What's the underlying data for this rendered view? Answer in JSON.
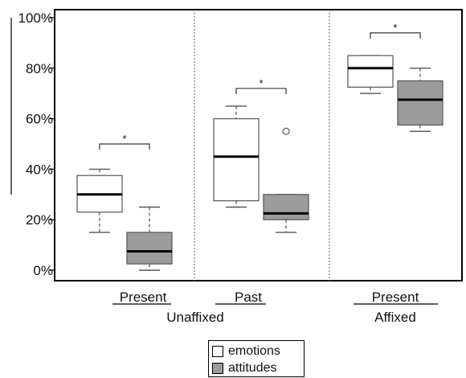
{
  "chart_data": {
    "type": "boxplot",
    "title": "",
    "xlabel": "",
    "ylabel": "",
    "ylim": [
      0,
      100
    ],
    "y_ticks": [
      "0%",
      "20%",
      "40%",
      "60%",
      "80%",
      "100%"
    ],
    "y_tick_values": [
      0,
      20,
      40,
      60,
      80,
      100
    ],
    "groups": [
      {
        "label": "Present",
        "supergroup": "Unaffixed"
      },
      {
        "label": "Past",
        "supergroup": ""
      },
      {
        "label": "Present",
        "supergroup": "Affixed"
      }
    ],
    "supergroups": [
      "Unaffixed",
      "Affixed"
    ],
    "series": [
      {
        "name": "emotions",
        "color": "#ffffff",
        "boxes": [
          {
            "group": 0,
            "min": 15,
            "q1": 23,
            "median": 30,
            "q3": 37.5,
            "max": 40,
            "outliers": []
          },
          {
            "group": 1,
            "min": 25,
            "q1": 27.5,
            "median": 45,
            "q3": 60,
            "max": 65,
            "outliers": []
          },
          {
            "group": 2,
            "min": 70,
            "q1": 72.5,
            "median": 80,
            "q3": 85,
            "max": 85,
            "outliers": []
          }
        ]
      },
      {
        "name": "attitudes",
        "color": "#9c9c9c",
        "boxes": [
          {
            "group": 0,
            "min": 0,
            "q1": 2.5,
            "median": 7.5,
            "q3": 15,
            "max": 25,
            "outliers": []
          },
          {
            "group": 1,
            "min": 15,
            "q1": 20,
            "median": 22.5,
            "q3": 30,
            "max": 30,
            "outliers": [
              55
            ]
          },
          {
            "group": 2,
            "min": 55,
            "q1": 57.5,
            "median": 67.5,
            "q3": 75,
            "max": 80,
            "outliers": []
          }
        ]
      }
    ],
    "significance": [
      {
        "group": 0,
        "label": "*",
        "y": 50
      },
      {
        "group": 1,
        "label": "*",
        "y": 72
      },
      {
        "group": 2,
        "label": "*",
        "y": 94
      }
    ],
    "legend": {
      "position": "bottom-center",
      "items": [
        "emotions",
        "attitudes"
      ]
    },
    "grid": false
  }
}
